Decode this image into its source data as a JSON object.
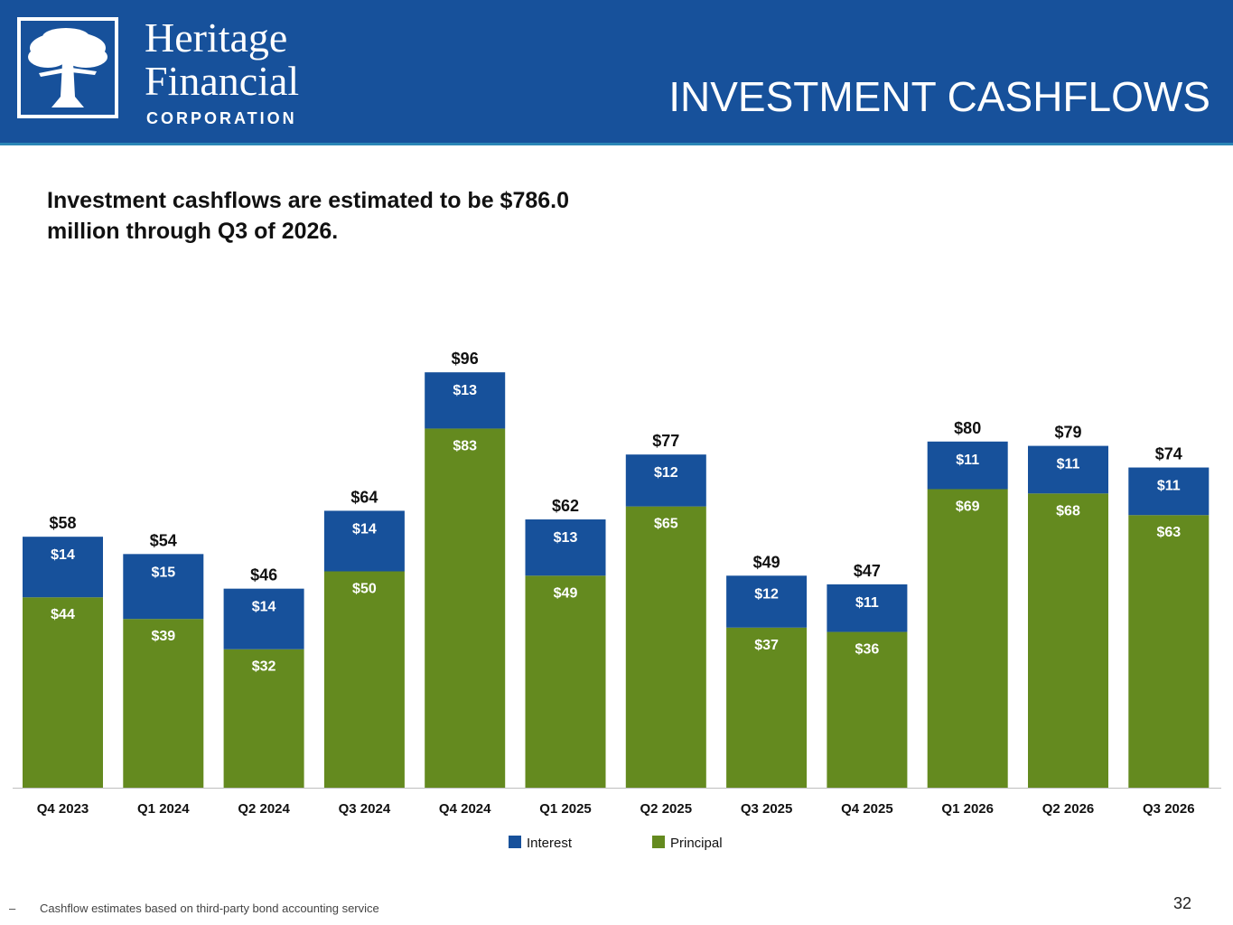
{
  "header": {
    "brand_name_line1": "Heritage",
    "brand_name_line2": "Financial",
    "brand_name_line3": "CORPORATION",
    "logo_icon": "oak-tree-icon",
    "title": "INVESTMENT CASHFLOWS",
    "bg_color": "#17519b"
  },
  "headline": "Investment cashflows are estimated to be $786.0 million through Q3 of 2026.",
  "chart_data": {
    "type": "bar",
    "stacked": true,
    "categories": [
      "Q4 2023",
      "Q1 2024",
      "Q2 2024",
      "Q3 2024",
      "Q4 2024",
      "Q1 2025",
      "Q2 2025",
      "Q3 2025",
      "Q4 2025",
      "Q1 2026",
      "Q2 2026",
      "Q3 2026"
    ],
    "series": [
      {
        "name": "Principal",
        "color": "#648a1f",
        "values": [
          44,
          39,
          32,
          50,
          83,
          49,
          65,
          37,
          36,
          69,
          68,
          63
        ]
      },
      {
        "name": "Interest",
        "color": "#17519b",
        "values": [
          14,
          15,
          14,
          14,
          13,
          13,
          12,
          12,
          11,
          11,
          11,
          11
        ]
      }
    ],
    "totals": [
      58,
      54,
      46,
      64,
      96,
      62,
      77,
      49,
      47,
      80,
      79,
      74
    ],
    "value_prefix": "$",
    "legend": [
      "Interest",
      "Principal"
    ],
    "legend_position": "bottom-center",
    "ylim": [
      0,
      100
    ],
    "grid": false
  },
  "footnote": {
    "bullet": "–",
    "text": "Cashflow estimates based on third-party bond accounting service"
  },
  "page_number": "32"
}
